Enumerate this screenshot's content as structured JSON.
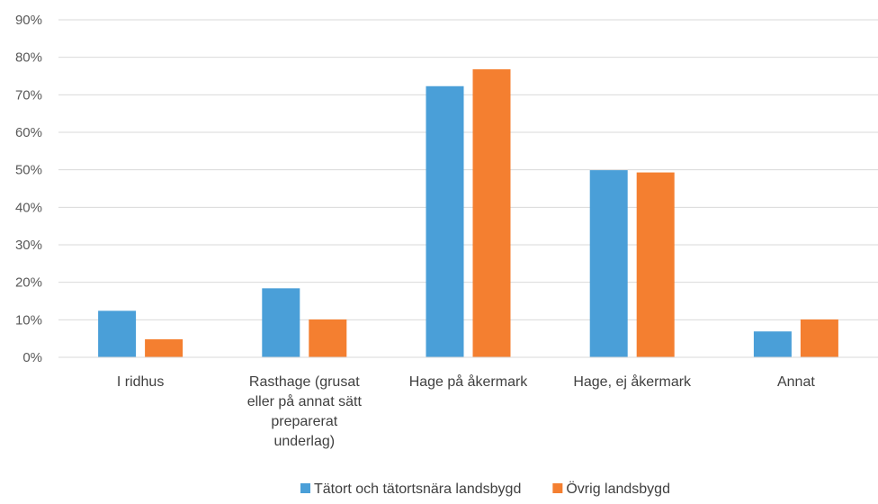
{
  "chart_data": {
    "type": "bar",
    "title": "",
    "xlabel": "",
    "ylabel": "",
    "ylim": [
      0,
      90
    ],
    "y_unit": "%",
    "y_ticks": [
      "0%",
      "10%",
      "20%",
      "30%",
      "40%",
      "50%",
      "60%",
      "70%",
      "80%",
      "90%"
    ],
    "grid": "horizontal",
    "legend_position": "bottom",
    "categories": [
      [
        "I ridhus"
      ],
      [
        "Rasthage (grusat",
        "eller på annat sätt",
        "preparerat",
        "underlag)"
      ],
      [
        "Hage på åkermark"
      ],
      [
        "Hage, ej åkermark"
      ],
      [
        "Annat"
      ]
    ],
    "series": [
      {
        "name": "Tätort och tätortsnära landsbygd",
        "color": "#4a9fd8",
        "values": [
          12.4,
          18.4,
          72.3,
          49.9,
          6.9
        ]
      },
      {
        "name": "Övrig landsbygd",
        "color": "#f47f30",
        "values": [
          4.8,
          10.1,
          76.8,
          49.3,
          10.1
        ]
      }
    ]
  }
}
